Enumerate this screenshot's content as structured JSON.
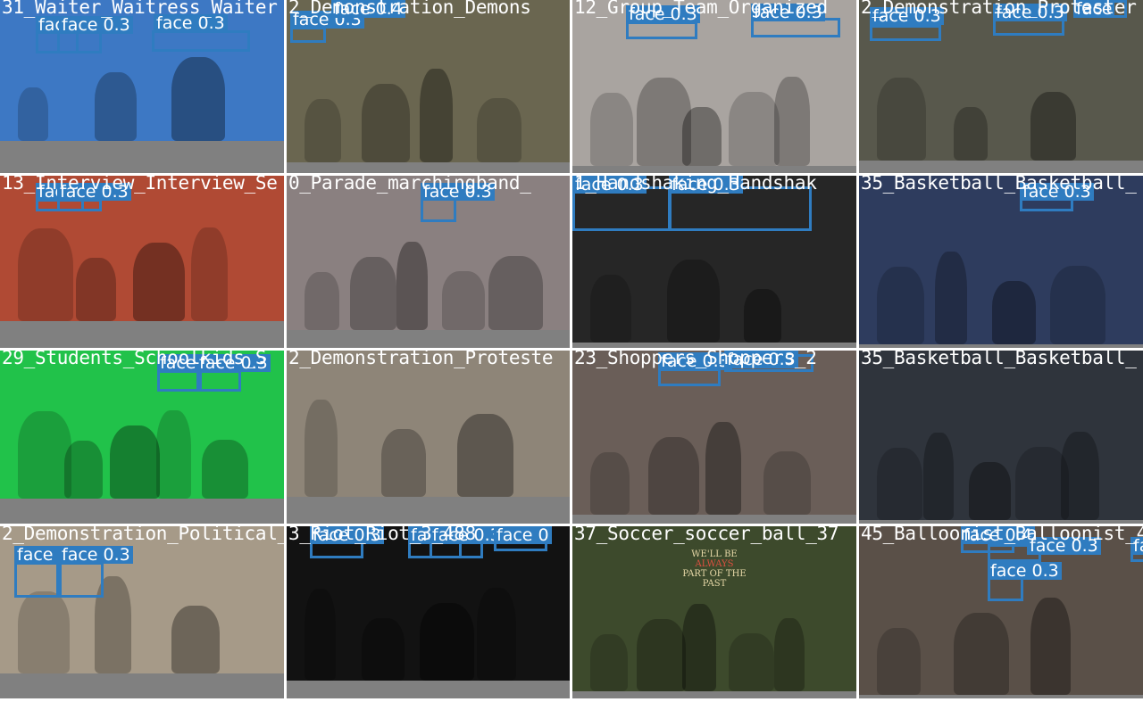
{
  "accent_color": "#2f7cc0",
  "pad_color": "#808080",
  "detection_label": "face",
  "tiles": [
    {
      "title": "31_Waiter_Waitress_Waiter",
      "bg": "#3d78c4",
      "dets": [
        {
          "label": "face 0.4"
        },
        {
          "label": "face 0.3"
        },
        {
          "label": "face 0.3"
        }
      ]
    },
    {
      "title": "2_Demonstration_Demons",
      "bg": "#6a6650",
      "dets": [
        {
          "label": "face 0.3"
        },
        {
          "label": "face 0.4"
        }
      ]
    },
    {
      "title": "12_Group_Team_Organized",
      "bg": "#a9a4a0",
      "dets": [
        {
          "label": "face 0.3"
        },
        {
          "label": "face 0.3"
        }
      ]
    },
    {
      "title": "2_Demonstration_Protester",
      "bg": "#58584c",
      "dets": [
        {
          "label": "face 0.3"
        },
        {
          "label": "face 0.3"
        },
        {
          "label": "face"
        }
      ]
    },
    {
      "title": "13_Interview_Interview_Se",
      "bg": "#b04a34",
      "dets": [
        {
          "label": "face 0.3"
        },
        {
          "label": "face 0.3"
        }
      ]
    },
    {
      "title": "0_Parade_marchingband_",
      "bg": "#8a8080",
      "dets": [
        {
          "label": "face 0.3"
        }
      ]
    },
    {
      "title": "1_Handshaking_Handshak",
      "bg": "#262626",
      "dets": [
        {
          "label": "face 0.3"
        },
        {
          "label": "face 0.3"
        }
      ]
    },
    {
      "title": "35_Basketball_Basketball_",
      "bg": "#2e3c5e",
      "dets": [
        {
          "label": "face 0.3"
        }
      ]
    },
    {
      "title": "29_Students_Schoolkids_S",
      "bg": "#21c24a",
      "dets": [
        {
          "label": "face 0.4"
        },
        {
          "label": "face 0.3"
        }
      ]
    },
    {
      "title": "2_Demonstration_Proteste",
      "bg": "#8e8578",
      "dets": []
    },
    {
      "title": "23_Shoppers_Shoppers_2",
      "bg": "#6a5e58",
      "dets": [
        {
          "label": "face 0.3"
        },
        {
          "label": "face 0.3"
        }
      ]
    },
    {
      "title": "35_Basketball_Basketball_",
      "bg": "#2f343c",
      "dets": []
    },
    {
      "title": "2_Demonstration_Political_",
      "bg": "#a69a88",
      "dets": [
        {
          "label": "face 0.3"
        },
        {
          "label": "face 0.3"
        }
      ]
    },
    {
      "title": "3_Riot_Riot_3_488",
      "bg": "#121212",
      "dets": [
        {
          "label": "face 0.3"
        },
        {
          "label": "face 0.3"
        },
        {
          "label": "face 0.3"
        },
        {
          "label": "face 0"
        }
      ]
    },
    {
      "title": "37_Soccer_soccer_ball_37",
      "bg": "#3d4a2c",
      "dets": [],
      "banner": [
        "WE'LL BE",
        "ALWAYS",
        "PART OF THE",
        "PAST"
      ]
    },
    {
      "title": "45_Balloonist_Balloonist_4",
      "bg": "#5a5048",
      "dets": [
        {
          "label": "face 0.4"
        },
        {
          "label": "face 0.3"
        },
        {
          "label": "face 0.3"
        },
        {
          "label": "face"
        }
      ]
    }
  ]
}
